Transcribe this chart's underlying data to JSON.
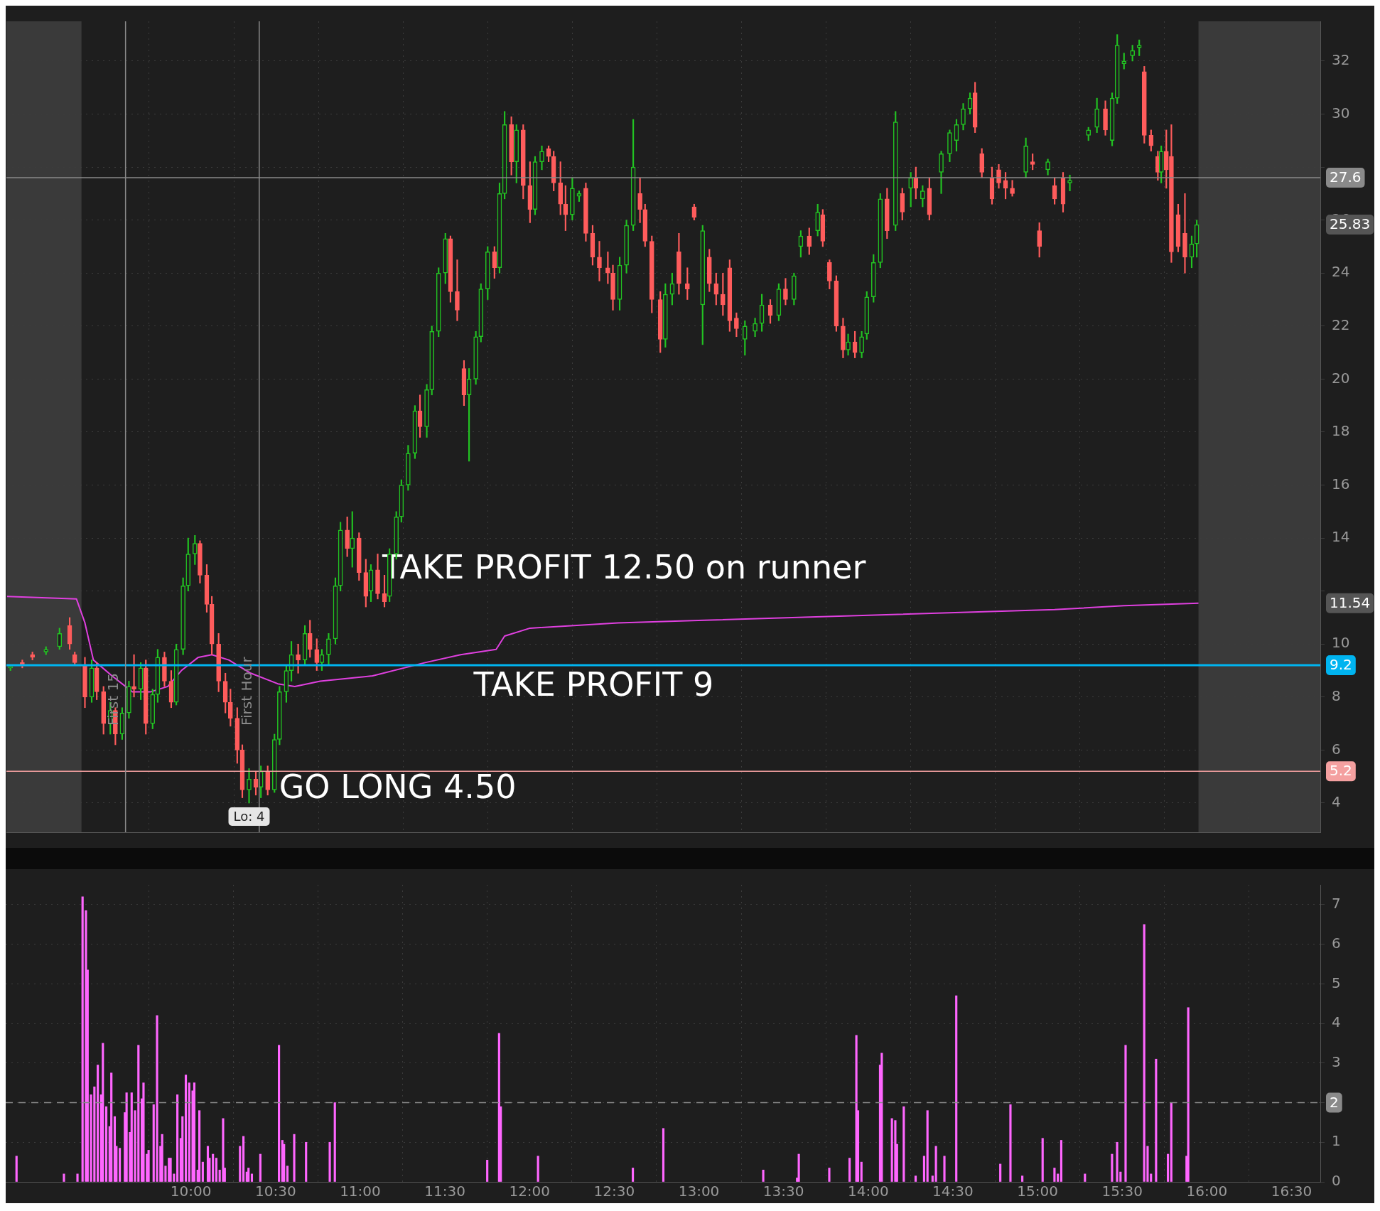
{
  "chart_data": [
    {
      "type": "candlestick",
      "x": [
        8.93,
        9.0,
        9.06,
        9.14,
        9.22,
        9.28,
        9.31,
        9.37,
        9.41,
        9.44,
        9.48,
        9.52,
        9.55,
        9.59,
        9.63,
        9.66,
        9.7,
        9.73,
        9.77,
        9.8,
        9.84,
        9.88,
        9.91,
        9.95,
        9.98,
        10.02,
        10.05,
        10.09,
        10.12,
        10.16,
        10.2,
        10.23,
        10.27,
        10.3,
        10.34,
        10.38,
        10.41,
        10.45,
        10.49,
        10.52,
        10.56,
        10.59,
        10.63,
        10.67,
        10.7,
        10.74,
        10.77,
        10.81,
        10.85,
        10.88,
        10.92,
        10.95,
        10.99,
        11.03,
        11.06,
        11.1,
        11.14,
        11.17,
        11.21,
        11.24,
        11.28,
        11.32,
        11.35,
        11.39,
        11.42,
        11.46,
        11.5,
        11.53,
        11.57,
        11.61,
        11.64,
        11.68,
        11.71,
        11.75,
        11.79,
        11.82,
        11.85,
        11.89,
        11.92,
        11.96,
        12.0,
        12.03,
        12.07,
        12.11,
        12.14,
        12.18,
        12.21,
        12.25,
        12.29,
        12.33,
        12.37,
        12.41,
        12.46,
        12.49,
        12.53,
        12.57,
        12.61,
        12.65,
        12.68,
        12.72,
        12.77,
        12.8,
        12.84,
        12.88,
        12.93,
        12.97,
        13.02,
        13.06,
        13.1,
        13.14,
        13.18,
        13.22,
        13.27,
        13.33,
        13.37,
        13.42,
        13.47,
        13.51,
        13.56,
        13.6,
        13.65,
        13.7,
        13.73,
        13.77,
        13.81,
        13.85,
        13.88,
        13.92,
        13.96,
        13.99,
        14.03,
        14.07,
        14.11,
        14.16,
        14.2,
        14.25,
        14.28,
        14.32,
        14.36,
        14.43,
        14.48,
        14.52,
        14.56,
        14.6,
        14.63,
        14.67,
        14.73,
        14.77,
        14.81,
        14.85,
        14.93,
        14.97,
        15.01,
        15.06,
        15.1,
        15.15,
        15.19,
        15.3,
        15.35,
        15.4,
        15.44,
        15.47,
        15.51,
        15.56,
        15.6,
        15.63,
        15.67,
        15.71,
        15.73,
        15.76,
        15.79,
        15.83,
        15.87,
        15.91,
        15.94
      ],
      "ohlc": [
        [
          9.1,
          9.2,
          9.0,
          9.1
        ],
        [
          9.3,
          9.4,
          9.1,
          9.2
        ],
        [
          9.6,
          9.7,
          9.4,
          9.5
        ],
        [
          9.7,
          9.9,
          9.6,
          9.8
        ],
        [
          9.9,
          10.6,
          9.8,
          10.4
        ],
        [
          10.7,
          11.0,
          9.8,
          10.0
        ],
        [
          9.6,
          9.7,
          9.2,
          9.3
        ],
        [
          9.2,
          9.5,
          7.6,
          8.0
        ],
        [
          8.0,
          9.4,
          7.8,
          9.1
        ],
        [
          9.1,
          9.3,
          7.9,
          8.2
        ],
        [
          8.2,
          8.4,
          6.6,
          7.0
        ],
        [
          7.0,
          7.8,
          6.6,
          7.5
        ],
        [
          7.5,
          7.6,
          6.2,
          6.6
        ],
        [
          6.6,
          7.6,
          6.4,
          7.4
        ],
        [
          7.4,
          8.6,
          7.2,
          8.4
        ],
        [
          8.4,
          9.6,
          8.0,
          8.3
        ],
        [
          8.3,
          9.3,
          7.9,
          9.1
        ],
        [
          9.1,
          9.4,
          6.6,
          7.0
        ],
        [
          7.0,
          8.3,
          6.8,
          8.1
        ],
        [
          8.1,
          9.8,
          7.8,
          9.5
        ],
        [
          9.5,
          9.7,
          8.4,
          8.6
        ],
        [
          8.6,
          9.0,
          7.6,
          7.8
        ],
        [
          7.8,
          10.0,
          7.7,
          9.8
        ],
        [
          9.8,
          12.5,
          9.6,
          12.2
        ],
        [
          12.2,
          14.0,
          12.0,
          13.4
        ],
        [
          13.4,
          14.1,
          13.0,
          13.8
        ],
        [
          13.8,
          13.9,
          12.3,
          12.6
        ],
        [
          12.6,
          13.0,
          11.2,
          11.5
        ],
        [
          11.5,
          11.8,
          9.6,
          10.0
        ],
        [
          10.0,
          10.4,
          8.2,
          8.6
        ],
        [
          8.6,
          8.9,
          7.4,
          7.8
        ],
        [
          7.8,
          8.3,
          6.9,
          7.2
        ],
        [
          7.2,
          7.6,
          5.5,
          6.0
        ],
        [
          6.0,
          6.2,
          4.2,
          4.5
        ],
        [
          4.5,
          5.3,
          4.0,
          4.9
        ],
        [
          4.9,
          5.2,
          4.3,
          4.6
        ],
        [
          4.6,
          5.4,
          4.2,
          5.2
        ],
        [
          5.2,
          5.4,
          4.3,
          4.5
        ],
        [
          4.5,
          6.6,
          4.4,
          6.4
        ],
        [
          6.4,
          8.4,
          6.2,
          8.2
        ],
        [
          8.2,
          9.2,
          7.8,
          9.0
        ],
        [
          9.0,
          10.1,
          8.6,
          9.6
        ],
        [
          9.6,
          10.0,
          8.9,
          9.4
        ],
        [
          9.4,
          10.7,
          9.2,
          10.4
        ],
        [
          10.4,
          10.9,
          9.5,
          9.8
        ],
        [
          9.8,
          10.2,
          9.0,
          9.3
        ],
        [
          9.3,
          9.8,
          9.0,
          9.6
        ],
        [
          9.6,
          10.4,
          9.2,
          10.2
        ],
        [
          10.2,
          12.5,
          10.0,
          12.2
        ],
        [
          12.2,
          14.6,
          12.0,
          14.3
        ],
        [
          14.3,
          14.8,
          13.3,
          13.6
        ],
        [
          13.6,
          15.0,
          12.9,
          14.0
        ],
        [
          14.0,
          14.2,
          12.4,
          12.7
        ],
        [
          12.7,
          13.2,
          11.4,
          11.8
        ],
        [
          12.0,
          13.0,
          11.6,
          12.8
        ],
        [
          12.8,
          13.4,
          11.7,
          11.9
        ],
        [
          11.9,
          12.6,
          11.4,
          11.6
        ],
        [
          11.8,
          13.6,
          11.6,
          13.4
        ],
        [
          13.4,
          15.0,
          13.2,
          14.8
        ],
        [
          14.8,
          16.2,
          14.6,
          16.0
        ],
        [
          16.0,
          17.5,
          15.8,
          17.2
        ],
        [
          17.2,
          19.0,
          17.0,
          18.8
        ],
        [
          18.8,
          19.4,
          17.8,
          18.2
        ],
        [
          18.2,
          19.8,
          17.8,
          19.6
        ],
        [
          19.6,
          22.0,
          19.4,
          21.8
        ],
        [
          21.8,
          24.2,
          21.6,
          24.0
        ],
        [
          24.0,
          25.5,
          23.6,
          25.3
        ],
        [
          25.3,
          25.4,
          22.9,
          23.3
        ],
        [
          23.3,
          24.5,
          22.2,
          22.6
        ],
        [
          20.4,
          20.7,
          19.0,
          19.4
        ],
        [
          19.4,
          20.4,
          16.9,
          20.0
        ],
        [
          20.0,
          21.8,
          19.8,
          21.6
        ],
        [
          21.6,
          23.6,
          21.4,
          23.4
        ],
        [
          23.4,
          25.0,
          23.0,
          24.8
        ],
        [
          24.8,
          25.0,
          23.8,
          24.2
        ],
        [
          24.2,
          27.4,
          24.0,
          27.0
        ],
        [
          27.0,
          30.1,
          26.8,
          29.6
        ],
        [
          29.6,
          29.9,
          27.7,
          28.2
        ],
        [
          28.2,
          29.6,
          27.4,
          29.4
        ],
        [
          29.4,
          29.6,
          26.8,
          27.3
        ],
        [
          27.3,
          28.2,
          25.9,
          26.4
        ],
        [
          26.4,
          28.4,
          26.2,
          28.2
        ],
        [
          28.2,
          28.8,
          27.9,
          28.6
        ],
        [
          28.7,
          28.8,
          28.2,
          28.4
        ],
        [
          28.4,
          28.6,
          27.1,
          27.4
        ],
        [
          27.4,
          28.2,
          26.2,
          26.6
        ],
        [
          26.6,
          27.3,
          25.6,
          26.2
        ],
        [
          26.2,
          27.6,
          26.0,
          27.2
        ],
        [
          26.9,
          27.1,
          26.7,
          27.0
        ],
        [
          27.2,
          27.4,
          25.2,
          25.5
        ],
        [
          25.5,
          25.8,
          24.3,
          24.6
        ],
        [
          24.6,
          25.2,
          23.7,
          24.2
        ],
        [
          24.2,
          24.8,
          23.6,
          24.0
        ],
        [
          24.0,
          24.3,
          22.6,
          23.0
        ],
        [
          23.0,
          24.6,
          22.6,
          24.3
        ],
        [
          24.3,
          26.0,
          24.0,
          25.8
        ],
        [
          25.8,
          29.8,
          25.6,
          28.0
        ],
        [
          27.0,
          27.6,
          25.9,
          26.4
        ],
        [
          26.4,
          26.6,
          25.0,
          25.2
        ],
        [
          25.2,
          25.4,
          22.5,
          23.0
        ],
        [
          23.0,
          23.3,
          21.0,
          21.5
        ],
        [
          21.5,
          23.6,
          21.2,
          23.2
        ],
        [
          23.2,
          24.0,
          22.8,
          23.6
        ],
        [
          24.8,
          25.5,
          23.2,
          23.6
        ],
        [
          23.6,
          24.2,
          23.0,
          23.4
        ],
        [
          26.5,
          26.6,
          26.0,
          26.1
        ],
        [
          22.8,
          25.8,
          21.3,
          25.6
        ],
        [
          24.6,
          24.9,
          23.3,
          23.6
        ],
        [
          23.6,
          24.0,
          22.8,
          23.2
        ],
        [
          23.2,
          24.0,
          22.4,
          22.8
        ],
        [
          24.2,
          24.5,
          21.8,
          22.2
        ],
        [
          22.3,
          22.5,
          21.6,
          21.9
        ],
        [
          21.5,
          22.2,
          20.9,
          22.0
        ],
        [
          21.8,
          22.3,
          21.6,
          22.1
        ],
        [
          22.1,
          23.2,
          21.8,
          22.8
        ],
        [
          22.8,
          23.0,
          22.1,
          22.4
        ],
        [
          22.4,
          23.6,
          22.2,
          23.4
        ],
        [
          23.4,
          23.8,
          22.8,
          23.0
        ],
        [
          23.0,
          24.0,
          22.8,
          23.9
        ],
        [
          25.0,
          25.6,
          24.6,
          25.4
        ],
        [
          25.4,
          25.7,
          24.7,
          25.0
        ],
        [
          25.6,
          26.6,
          25.4,
          26.3
        ],
        [
          26.2,
          26.4,
          25.0,
          25.2
        ],
        [
          24.4,
          24.5,
          23.4,
          23.7
        ],
        [
          23.7,
          23.9,
          21.8,
          22.0
        ],
        [
          22.0,
          22.3,
          20.8,
          21.1
        ],
        [
          21.1,
          21.7,
          20.9,
          21.4
        ],
        [
          21.4,
          21.8,
          20.8,
          21.0
        ],
        [
          21.0,
          21.8,
          20.8,
          21.6
        ],
        [
          21.7,
          23.3,
          21.5,
          23.1
        ],
        [
          23.1,
          24.7,
          22.9,
          24.4
        ],
        [
          24.4,
          27.0,
          24.2,
          26.8
        ],
        [
          26.8,
          27.2,
          25.3,
          25.6
        ],
        [
          25.8,
          30.1,
          25.6,
          29.7
        ],
        [
          27.0,
          27.2,
          26.0,
          26.3
        ],
        [
          27.2,
          27.8,
          26.5,
          27.6
        ],
        [
          27.6,
          28.0,
          26.8,
          27.2
        ],
        [
          26.8,
          27.3,
          26.5,
          27.1
        ],
        [
          27.2,
          27.6,
          26.0,
          26.2
        ],
        [
          27.8,
          28.6,
          27.0,
          28.5
        ],
        [
          28.5,
          29.4,
          28.2,
          29.3
        ],
        [
          29.0,
          29.8,
          28.6,
          29.6
        ],
        [
          29.6,
          30.4,
          29.4,
          30.2
        ],
        [
          30.2,
          30.8,
          30.0,
          30.6
        ],
        [
          30.8,
          31.2,
          29.3,
          29.5
        ],
        [
          28.5,
          28.7,
          27.6,
          27.8
        ],
        [
          27.6,
          28.0,
          26.6,
          26.8
        ],
        [
          27.9,
          28.1,
          27.2,
          27.4
        ],
        [
          27.5,
          27.8,
          26.8,
          27.2
        ],
        [
          27.2,
          27.5,
          26.9,
          27.0
        ],
        [
          27.8,
          29.1,
          27.6,
          28.8
        ],
        [
          28.2,
          28.5,
          27.9,
          28.1
        ],
        [
          25.6,
          25.9,
          24.6,
          25.0
        ],
        [
          27.9,
          28.3,
          27.7,
          28.2
        ],
        [
          27.3,
          27.6,
          26.6,
          26.8
        ],
        [
          27.6,
          27.8,
          26.3,
          26.6
        ],
        [
          27.4,
          27.7,
          27.1,
          27.5
        ],
        [
          29.2,
          29.5,
          29.0,
          29.4
        ],
        [
          29.5,
          30.6,
          29.3,
          30.2
        ],
        [
          30.2,
          30.5,
          29.2,
          29.4
        ],
        [
          29.0,
          30.8,
          28.8,
          30.6
        ],
        [
          30.6,
          33.0,
          30.4,
          32.6
        ],
        [
          31.9,
          32.3,
          31.7,
          32.0
        ],
        [
          32.2,
          32.6,
          32.0,
          32.4
        ],
        [
          32.5,
          32.8,
          32.2,
          32.6
        ],
        [
          31.6,
          31.8,
          28.9,
          29.2
        ],
        [
          29.2,
          29.4,
          28.6,
          28.8
        ],
        [
          28.4,
          28.6,
          27.5,
          27.8
        ],
        [
          27.8,
          28.8,
          27.4,
          28.6
        ],
        [
          28.6,
          29.4,
          27.2,
          27.9
        ],
        [
          28.4,
          29.6,
          24.4,
          24.8
        ],
        [
          26.2,
          26.6,
          24.8,
          25.0
        ],
        [
          25.5,
          27.0,
          24.0,
          24.6
        ],
        [
          24.6,
          25.4,
          24.2,
          25.1
        ],
        [
          25.1,
          26.0,
          24.6,
          25.83
        ]
      ],
      "series": [
        {
          "type": "line",
          "color": "#e040e0",
          "x": [
            8.91,
            9.32,
            9.37,
            9.42,
            9.53,
            9.65,
            9.76,
            9.86,
            9.94,
            10.04,
            10.12,
            10.22,
            10.35,
            10.51,
            10.61,
            10.76,
            11.07,
            11.38,
            11.59,
            11.8,
            11.85,
            12.0,
            12.52,
            13.03,
            13.55,
            14.07,
            14.58,
            15.1,
            15.51,
            15.95
          ],
          "values": [
            11.8,
            11.7,
            10.8,
            9.4,
            8.8,
            8.2,
            8.2,
            8.4,
            9.0,
            9.5,
            9.6,
            9.4,
            8.9,
            8.5,
            8.4,
            8.6,
            8.8,
            9.3,
            9.6,
            9.8,
            10.3,
            10.6,
            10.8,
            10.9,
            11.0,
            11.1,
            11.2,
            11.3,
            11.45,
            11.54
          ]
        }
      ],
      "xlim": [
        8.906,
        16.67
      ],
      "xticks": [
        {
          "value": 10,
          "label": null
        },
        {
          "value": 10.5,
          "label": null
        },
        {
          "value": 11,
          "label": null
        },
        {
          "value": 11.5,
          "label": null
        },
        {
          "value": 12,
          "label": null
        },
        {
          "value": 12.5,
          "label": null
        },
        {
          "value": 13,
          "label": null
        },
        {
          "value": 13.5,
          "label": null
        },
        {
          "value": 14,
          "label": null
        },
        {
          "value": 14.5,
          "label": null
        },
        {
          "value": 15,
          "label": null
        },
        {
          "value": 15.5,
          "label": null
        },
        {
          "value": 16,
          "label": null
        },
        {
          "value": 16.5,
          "label": null
        }
      ],
      "ylim": [
        2.9,
        33.5
      ],
      "yticks": [
        4,
        6,
        8,
        10,
        {
          "value": 12,
          "label": null
        },
        14,
        16,
        18,
        20,
        22,
        24,
        26,
        {
          "value": 28,
          "label": null
        },
        30,
        32
      ],
      "grid": true,
      "tick_labels": "y",
      "bands": [
        {
          "axis": "x",
          "from": 8.906,
          "to": 9.35,
          "color": "#3a3a3a"
        },
        {
          "axis": "x",
          "from": 15.95,
          "to": 16.67,
          "color": "#3a3a3a"
        }
      ],
      "ref_lines": [
        {
          "axis": "y",
          "value": 9.2,
          "label": "9.2",
          "color": "#00b4f0"
        },
        {
          "axis": "y",
          "value": 5.2,
          "label": "5.2",
          "color": "#f4a0a0"
        },
        {
          "axis": "y",
          "value": 27.6,
          "label": "27.6",
          "color": "#8a8a8a"
        },
        {
          "axis": "x",
          "value": 9.61,
          "label": "First 15",
          "color": "#8a8a8a"
        },
        {
          "axis": "x",
          "value": 10.4,
          "label": "First Hour",
          "color": "#8a8a8a"
        }
      ],
      "annotations": [
        {
          "text": "TAKE PROFIT 12.50 on runner",
          "x": 11.06,
          "y": 12.8
        },
        {
          "text": "TAKE PROFIT 9",
          "x": 11.6,
          "y": 9.2
        },
        {
          "text": "GO LONG 4.50",
          "x": 10.45,
          "y": 4.5
        },
        {
          "text": "Lo: 4",
          "x": 10.34,
          "y": 4
        },
        {
          "text": "25.83",
          "x": 16.67,
          "y": 25.83
        },
        {
          "text": "11.54",
          "x": 16.67,
          "y": 11.54
        }
      ]
    },
    {
      "type": "bar",
      "color": "#ff66ff",
      "x": [
        8.97,
        9.25,
        9.33,
        9.36,
        9.38,
        9.39,
        9.41,
        9.43,
        9.45,
        9.47,
        9.48,
        9.5,
        9.52,
        9.53,
        9.55,
        9.56,
        9.58,
        9.61,
        9.62,
        9.64,
        9.65,
        9.67,
        9.69,
        9.71,
        9.72,
        9.74,
        9.75,
        9.78,
        9.8,
        9.82,
        9.83,
        9.85,
        9.87,
        9.88,
        9.9,
        9.92,
        9.94,
        9.95,
        9.97,
        9.99,
        10.01,
        10.02,
        10.04,
        10.05,
        10.07,
        10.1,
        10.11,
        10.13,
        10.15,
        10.17,
        10.19,
        10.2,
        10.29,
        10.31,
        10.33,
        10.34,
        10.36,
        10.41,
        10.52,
        10.54,
        10.55,
        10.57,
        10.61,
        10.68,
        10.82,
        10.85,
        11.75,
        11.82,
        11.83,
        12.05,
        12.61,
        12.79,
        13.38,
        13.58,
        13.59,
        13.77,
        13.89,
        13.93,
        13.94,
        13.96,
        14.07,
        14.08,
        14.14,
        14.16,
        14.17,
        14.21,
        14.28,
        14.33,
        14.35,
        14.38,
        14.4,
        14.45,
        14.52,
        14.78,
        14.84,
        14.91,
        15.03,
        15.1,
        15.12,
        15.14,
        15.28,
        15.44,
        15.47,
        15.49,
        15.52,
        15.63,
        15.65,
        15.67,
        15.7,
        15.77,
        15.79,
        15.88,
        15.89
      ],
      "values": [
        0.65,
        0.2,
        0.2,
        7.2,
        6.85,
        5.35,
        2.2,
        2.4,
        2.95,
        2.2,
        3.5,
        1.9,
        1.4,
        2.75,
        1.65,
        0.9,
        0.85,
        1.75,
        2.25,
        1.25,
        2.25,
        1.8,
        3.45,
        2.1,
        2.5,
        0.7,
        0.8,
        1.95,
        4.2,
        0.9,
        1.2,
        0.4,
        0.6,
        0.6,
        0.2,
        2.2,
        1.1,
        1.65,
        2.7,
        2.5,
        2.3,
        2.5,
        0.3,
        1.8,
        0.5,
        0.9,
        0.6,
        0.7,
        0.6,
        0.3,
        1.6,
        0.35,
        0.9,
        1.15,
        0.25,
        0.35,
        0.2,
        0.7,
        3.45,
        1.05,
        0.95,
        0.4,
        1.2,
        1.0,
        1.0,
        2.0,
        0.55,
        3.75,
        1.9,
        0.65,
        0.35,
        1.35,
        0.3,
        0.1,
        0.7,
        0.35,
        0.6,
        3.7,
        1.8,
        0.5,
        2.95,
        3.25,
        1.6,
        1.55,
        0.95,
        1.9,
        0.15,
        0.65,
        1.8,
        0.15,
        0.9,
        0.65,
        4.7,
        0.45,
        1.95,
        0.15,
        1.1,
        0.35,
        0.2,
        1.05,
        0.2,
        0.7,
        1.0,
        0.25,
        3.45,
        6.5,
        0.9,
        0.2,
        3.1,
        0.7,
        2.0,
        0.65,
        4.4
      ],
      "xlim": [
        8.906,
        16.67
      ],
      "xticks": [
        {
          "value": 10,
          "label": "10:00"
        },
        {
          "value": 10.5,
          "label": "10:30"
        },
        {
          "value": 11,
          "label": "11:00"
        },
        {
          "value": 11.5,
          "label": "11:30"
        },
        {
          "value": 12,
          "label": "12:00"
        },
        {
          "value": 12.5,
          "label": "12:30"
        },
        {
          "value": 13,
          "label": "13:00"
        },
        {
          "value": 13.5,
          "label": "13:30"
        },
        {
          "value": 14,
          "label": "14:00"
        },
        {
          "value": 14.5,
          "label": "14:30"
        },
        {
          "value": 15,
          "label": "15:00"
        },
        {
          "value": 15.5,
          "label": "15:30"
        },
        {
          "value": 16,
          "label": "16:00"
        },
        {
          "value": 16.5,
          "label": "16:30"
        }
      ],
      "ylim": [
        0,
        7.5
      ],
      "yticks": [
        0,
        1,
        2,
        3,
        4,
        5,
        6,
        7
      ],
      "grid": true,
      "ref_lines": [
        {
          "axis": "y",
          "value": 2,
          "label": "2",
          "color": "#8a8a8a",
          "line_style": "dashed"
        }
      ]
    }
  ]
}
